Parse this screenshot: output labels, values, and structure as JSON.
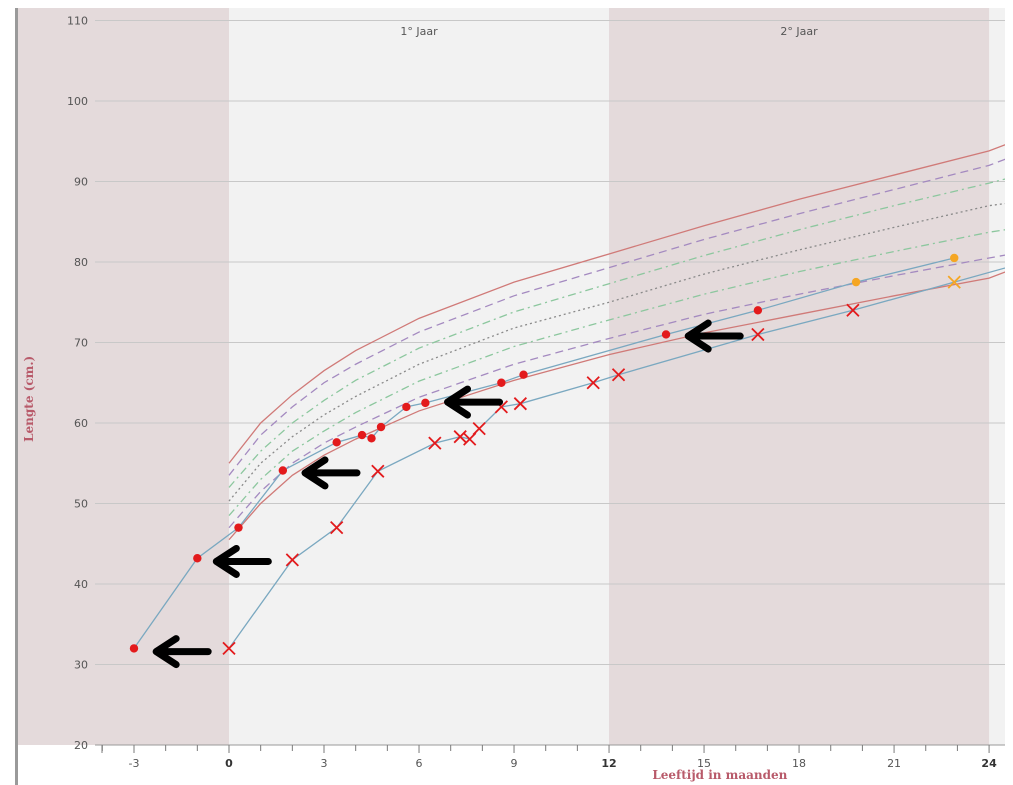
{
  "colors": {
    "shaded_band": "#e4dadb",
    "plot_bg": "#f2f2f2",
    "grid": "#c8c8c8",
    "red_curve": "#d07a78",
    "purple_dash": "#a48ac0",
    "green_dashdot": "#8cc79e",
    "grey_dotted": "#8a8a8a",
    "blue_line": "#7aa8c0",
    "red_marker": "#e31a1c",
    "orange_marker": "#f5a623",
    "arrow": "#000000"
  },
  "chart_data": {
    "type": "line",
    "title": "",
    "xlabel": "Leeftijd in maanden",
    "ylabel": "Lengte (cm.)",
    "xlim": [
      -8,
      25
    ],
    "ylim": [
      20,
      110
    ],
    "x_ticks": [
      -3,
      0,
      3,
      6,
      9,
      12,
      15,
      18,
      21,
      24
    ],
    "x_tick_labels": [
      "-3",
      "0",
      "3",
      "6",
      "9",
      "12",
      "15",
      "18",
      "21",
      "24"
    ],
    "y_ticks": [
      20,
      30,
      40,
      50,
      60,
      70,
      80,
      90,
      100,
      110
    ],
    "y_tick_labels": [
      "20",
      "30",
      "40",
      "50",
      "60",
      "70",
      "80",
      "90",
      "100",
      "110"
    ],
    "bands": [
      {
        "from": -8,
        "to": 0,
        "label": ""
      },
      {
        "from": 12,
        "to": 24,
        "label": "2° Jaar"
      }
    ],
    "band_labels": [
      {
        "x": 6,
        "label": "1° Jaar"
      },
      {
        "x": 18,
        "label": "2° Jaar"
      }
    ],
    "reference_curves": [
      {
        "style": "solid-red",
        "x": [
          0,
          1,
          2,
          3,
          4,
          6,
          9,
          12,
          15,
          18,
          21,
          24,
          25
        ],
        "y": [
          55,
          60,
          63.5,
          66.5,
          69,
          73,
          77.5,
          81,
          84.5,
          87.8,
          90.8,
          93.8,
          95.3
        ]
      },
      {
        "style": "dashed-purple",
        "x": [
          0,
          1,
          2,
          3,
          4,
          6,
          9,
          12,
          15,
          18,
          21,
          24,
          25
        ],
        "y": [
          53.5,
          58.5,
          62,
          65,
          67.3,
          71.3,
          75.8,
          79.3,
          82.8,
          86,
          89,
          92,
          93.5
        ]
      },
      {
        "style": "dashdot-green",
        "x": [
          0,
          1,
          2,
          3,
          4,
          6,
          9,
          12,
          15,
          18,
          21,
          24,
          25
        ],
        "y": [
          52,
          56.5,
          60,
          62.8,
          65.3,
          69.3,
          73.8,
          77.3,
          80.8,
          84,
          87,
          89.8,
          90.8
        ]
      },
      {
        "style": "dotted-grey",
        "x": [
          0,
          1,
          2,
          3,
          4,
          6,
          9,
          12,
          15,
          18,
          21,
          24,
          25
        ],
        "y": [
          50.3,
          55,
          58.3,
          61,
          63.3,
          67.3,
          71.8,
          75,
          78.5,
          81.5,
          84.3,
          87,
          87.5
        ]
      },
      {
        "style": "dashdot-green",
        "x": [
          0,
          1,
          2,
          3,
          4,
          6,
          9,
          12,
          15,
          18,
          21,
          24,
          25
        ],
        "y": [
          48.5,
          53,
          56.5,
          59,
          61.3,
          65.2,
          69.5,
          72.8,
          76,
          78.8,
          81.3,
          83.7,
          84.3
        ]
      },
      {
        "style": "dashed-purple",
        "x": [
          0,
          1,
          2,
          3,
          4,
          6,
          9,
          12,
          15,
          18,
          21,
          24,
          25
        ],
        "y": [
          47,
          51.5,
          55,
          57.5,
          59.5,
          63.2,
          67.3,
          70.5,
          73.5,
          76,
          78.3,
          80.5,
          81.2
        ]
      },
      {
        "style": "solid-red",
        "x": [
          0,
          1,
          2,
          3,
          4,
          6,
          9,
          12,
          15,
          18,
          21,
          24,
          25
        ],
        "y": [
          45.5,
          50,
          53.5,
          56,
          58,
          61.5,
          65.3,
          68.5,
          71.2,
          73.5,
          75.8,
          78,
          79.5
        ]
      }
    ],
    "series": [
      {
        "marker": "dot",
        "x": [
          -3,
          -1,
          0.3,
          1.7,
          3.4,
          4.2,
          4.5,
          4.8,
          5.6,
          6.2,
          8.6,
          9.3,
          13.8,
          16.7,
          19.8,
          22.9
        ],
        "y": [
          32,
          43.2,
          47,
          54.1,
          57.6,
          58.5,
          58.1,
          59.5,
          62,
          62.5,
          65,
          66,
          71,
          74,
          77.5,
          80.5
        ],
        "marker_colors": [
          "red",
          "red",
          "red",
          "red",
          "red",
          "red",
          "red",
          "red",
          "red",
          "red",
          "red",
          "red",
          "red",
          "red",
          "orange",
          "orange"
        ]
      },
      {
        "marker": "cross",
        "x": [
          0,
          2,
          3.4,
          4.7,
          6.5,
          7.3,
          7.6,
          7.9,
          8.6,
          9.2,
          11.5,
          12.3,
          16.7,
          19.7,
          22.9,
          25
        ],
        "y": [
          32,
          43,
          47,
          54,
          57.5,
          58.3,
          58,
          59.3,
          62,
          62.4,
          65,
          66,
          71,
          74,
          77.5,
          79.8
        ],
        "marker_colors": [
          "red",
          "red",
          "red",
          "red",
          "red",
          "red",
          "red",
          "red",
          "red",
          "red",
          "red",
          "red",
          "red",
          "red",
          "orange",
          "none"
        ]
      }
    ],
    "annotations": [
      {
        "type": "arrow",
        "x": -2.3,
        "y": 31.6
      },
      {
        "type": "arrow",
        "x": -0.4,
        "y": 42.8
      },
      {
        "type": "arrow",
        "x": 2.4,
        "y": 53.8
      },
      {
        "type": "arrow",
        "x": 6.9,
        "y": 62.6
      },
      {
        "type": "arrow",
        "x": 14.5,
        "y": 70.8
      }
    ]
  }
}
